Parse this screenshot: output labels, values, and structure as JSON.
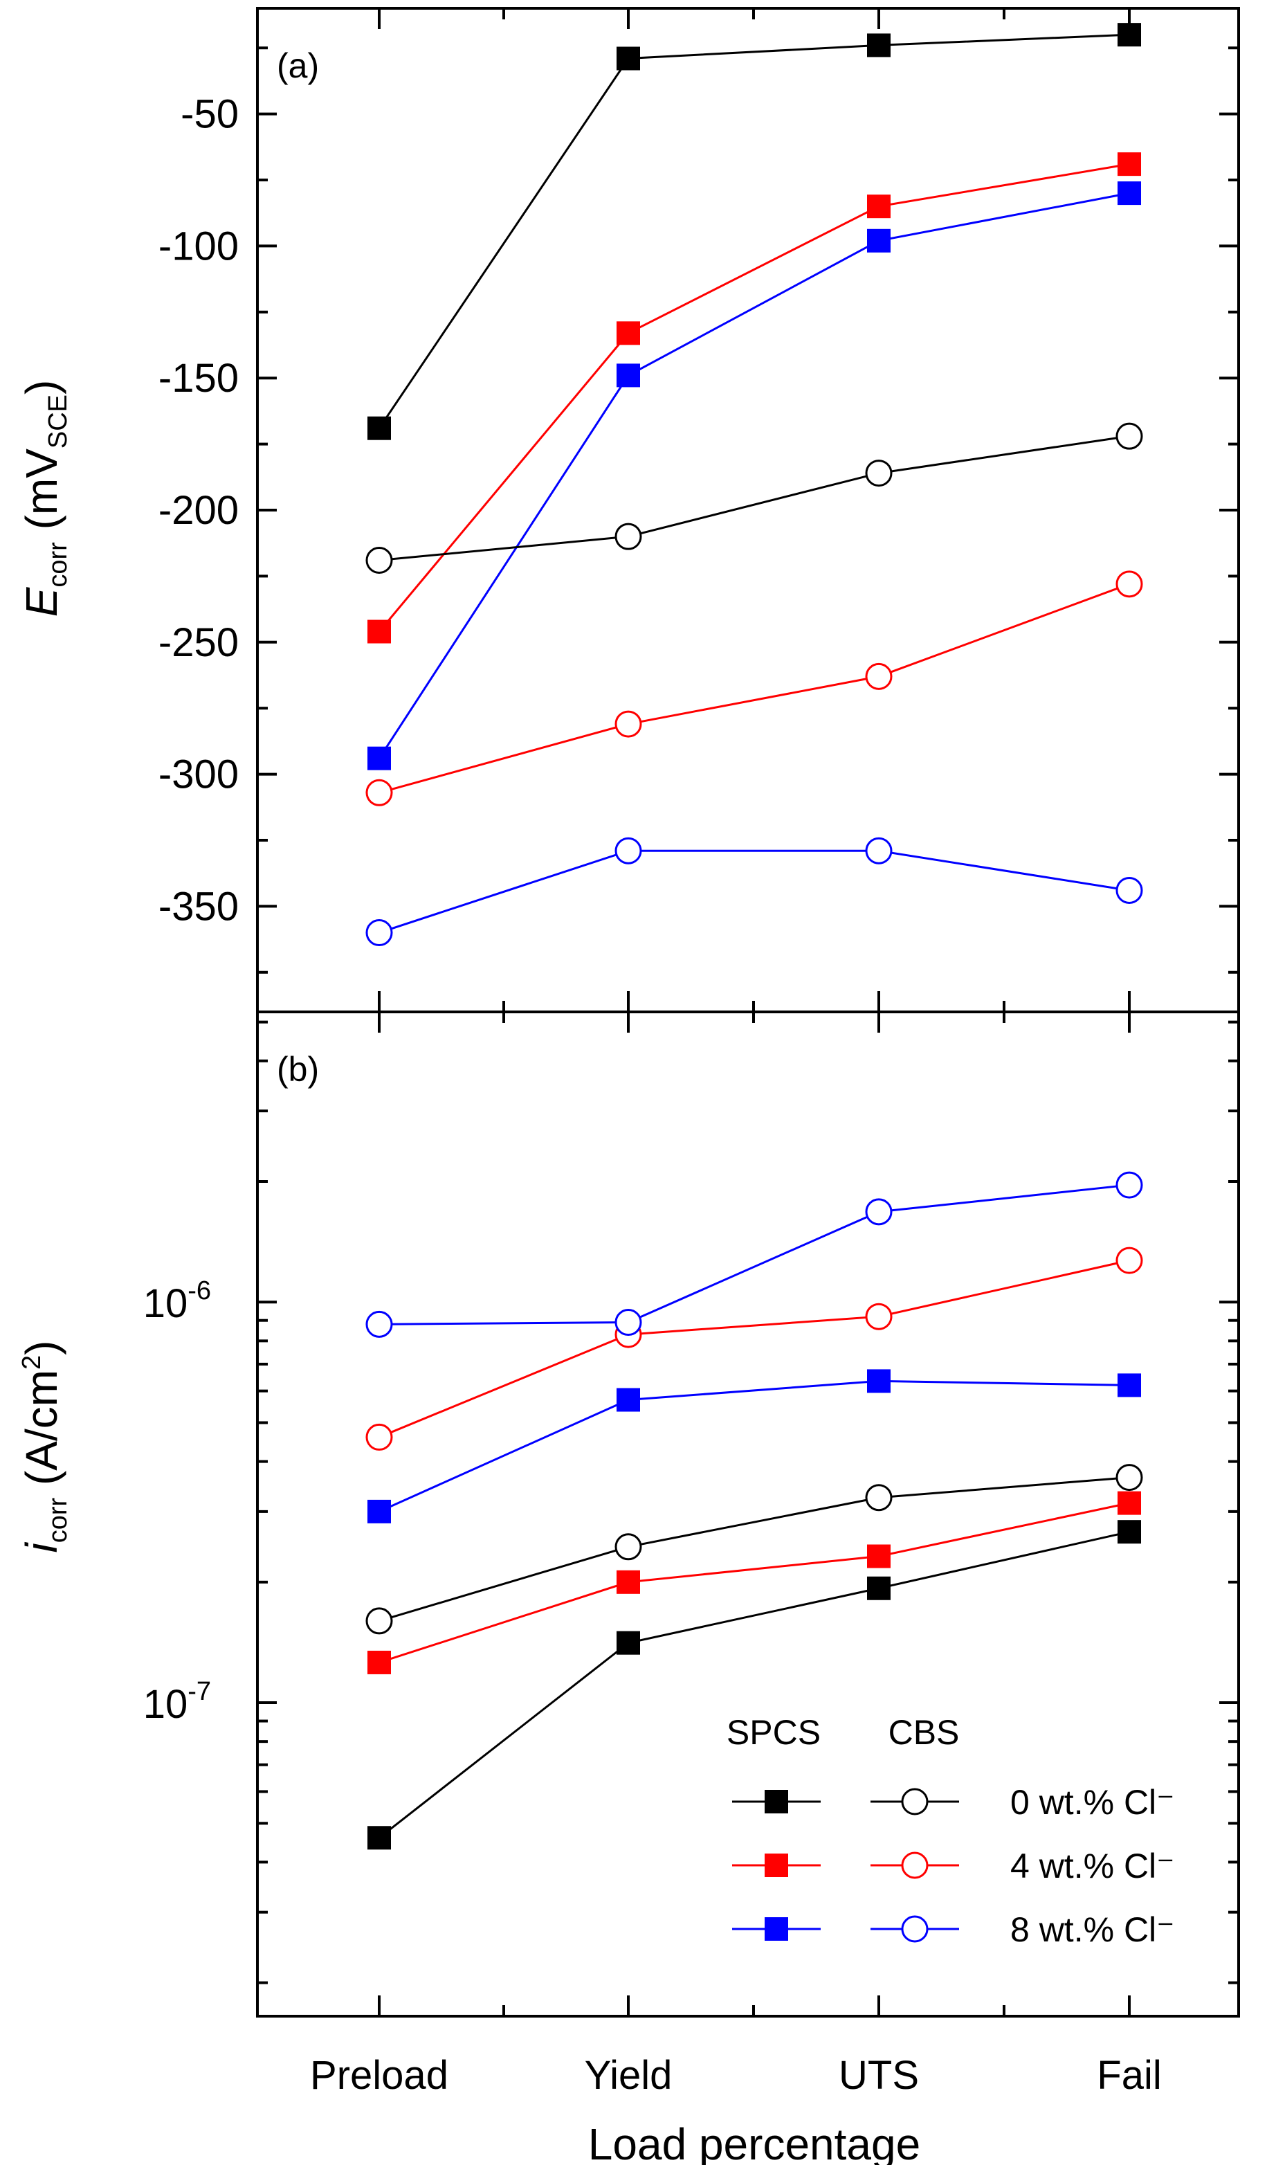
{
  "chart_data": [
    {
      "type": "line",
      "panel_label": "(a)",
      "ylabel": {
        "symbol": "E",
        "subscript": "corr",
        "unit_open": " (mV",
        "unit_sub": "SCE",
        "unit_close": ")"
      },
      "categories": [
        "Preload",
        "Yield",
        "UTS",
        "Fail"
      ],
      "ylim": [
        -390,
        -10
      ],
      "yticks": [
        -50,
        -100,
        -150,
        -200,
        -250,
        -300,
        -350
      ],
      "ytick_labels": [
        "-50",
        "-100",
        "-150",
        "-200",
        "-250",
        "-300",
        "-350"
      ],
      "series": [
        {
          "name": "SPCS 0 wt.% Cl⁻",
          "marker": "square-filled",
          "color": "#000000",
          "values": [
            -169,
            -29,
            -24,
            -20
          ]
        },
        {
          "name": "SPCS 4 wt.% Cl⁻",
          "marker": "square-filled",
          "color": "#ff0000",
          "values": [
            -246,
            -133,
            -85,
            -69
          ]
        },
        {
          "name": "SPCS 8 wt.% Cl⁻",
          "marker": "square-filled",
          "color": "#0000ff",
          "values": [
            -294,
            -149,
            -98,
            -80
          ]
        },
        {
          "name": "CBS 0 wt.% Cl⁻",
          "marker": "circle-open",
          "color": "#000000",
          "values": [
            -219,
            -210,
            -186,
            -172
          ]
        },
        {
          "name": "CBS 4 wt.% Cl⁻",
          "marker": "circle-open",
          "color": "#ff0000",
          "values": [
            -307,
            -281,
            -263,
            -228
          ]
        },
        {
          "name": "CBS 8 wt.% Cl⁻",
          "marker": "circle-open",
          "color": "#0000ff",
          "values": [
            -360,
            -329,
            -329,
            -344
          ]
        }
      ]
    },
    {
      "type": "line",
      "yscale": "log",
      "panel_label": "(b)",
      "ylabel": {
        "symbol": "i",
        "subscript": "corr",
        "unit_open": " (A/cm",
        "unit_sup": "2",
        "unit_close": ")"
      },
      "xlabel": "Load percentage",
      "categories": [
        "Preload",
        "Yield",
        "UTS",
        "Fail"
      ],
      "ylim": [
        1.65e-08,
        5.3e-06
      ],
      "yticks": [
        1e-06,
        1e-07
      ],
      "ytick_labels": [
        {
          "base": "10",
          "exp": "-6"
        },
        {
          "base": "10",
          "exp": "-7"
        }
      ],
      "minor_yticks": [
        2e-08,
        3e-08,
        4e-08,
        5e-08,
        6e-08,
        7e-08,
        8e-08,
        9e-08,
        2e-07,
        3e-07,
        4e-07,
        5e-07,
        6e-07,
        7e-07,
        8e-07,
        9e-07,
        2e-06,
        3e-06,
        4e-06,
        5e-06
      ],
      "series": [
        {
          "name": "SPCS 0 wt.% Cl⁻",
          "marker": "square-filled",
          "color": "#000000",
          "values": [
            4.6e-08,
            1.41e-07,
            1.93e-07,
            2.67e-07
          ]
        },
        {
          "name": "SPCS 4 wt.% Cl⁻",
          "marker": "square-filled",
          "color": "#ff0000",
          "values": [
            1.26e-07,
            2e-07,
            2.32e-07,
            3.15e-07
          ]
        },
        {
          "name": "SPCS 8 wt.% Cl⁻",
          "marker": "square-filled",
          "color": "#0000ff",
          "values": [
            3e-07,
            5.7e-07,
            6.35e-07,
            6.2e-07
          ]
        },
        {
          "name": "CBS 0 wt.% Cl⁻",
          "marker": "circle-open",
          "color": "#000000",
          "values": [
            1.6e-07,
            2.45e-07,
            3.25e-07,
            3.65e-07
          ]
        },
        {
          "name": "CBS 4 wt.% Cl⁻",
          "marker": "circle-open",
          "color": "#ff0000",
          "values": [
            4.6e-07,
            8.3e-07,
            9.2e-07,
            1.27e-06
          ]
        },
        {
          "name": "CBS 8 wt.% Cl⁻",
          "marker": "circle-open",
          "color": "#0000ff",
          "values": [
            8.8e-07,
            8.9e-07,
            1.68e-06,
            1.96e-06
          ]
        }
      ],
      "legend": {
        "position": "bottom-right",
        "headers": [
          "SPCS",
          "CBS"
        ],
        "entries": [
          {
            "label": "0 wt.% Cl⁻",
            "color": "#000000"
          },
          {
            "label": "4 wt.% Cl⁻",
            "color": "#ff0000"
          },
          {
            "label": "8 wt.% Cl⁻",
            "color": "#0000ff"
          }
        ]
      }
    }
  ]
}
